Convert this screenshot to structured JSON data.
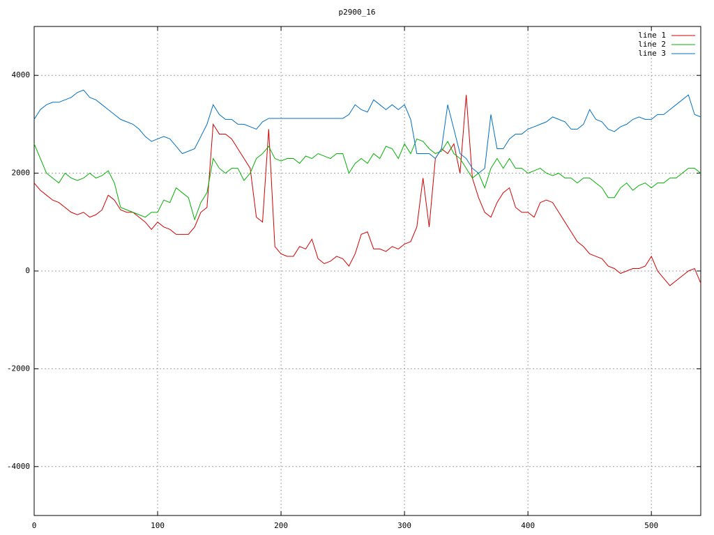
{
  "chart_data": {
    "type": "line",
    "title": "p2900_16",
    "x": [
      0,
      5,
      10,
      15,
      20,
      25,
      30,
      35,
      40,
      45,
      50,
      55,
      60,
      65,
      70,
      75,
      80,
      85,
      90,
      95,
      100,
      105,
      110,
      115,
      120,
      125,
      130,
      135,
      140,
      145,
      150,
      155,
      160,
      165,
      170,
      175,
      180,
      185,
      190,
      195,
      200,
      205,
      210,
      215,
      220,
      225,
      230,
      235,
      240,
      245,
      250,
      255,
      260,
      265,
      270,
      275,
      280,
      285,
      290,
      295,
      300,
      305,
      310,
      315,
      320,
      325,
      330,
      335,
      340,
      345,
      350,
      355,
      360,
      365,
      370,
      375,
      380,
      385,
      390,
      395,
      400,
      405,
      410,
      415,
      420,
      425,
      430,
      435,
      440,
      445,
      450,
      455,
      460,
      465,
      470,
      475,
      480,
      485,
      490,
      495,
      500,
      505,
      510,
      515,
      520,
      525,
      530,
      535,
      540
    ],
    "series": [
      {
        "name": "line 1",
        "color": "#d00000",
        "values": [
          1800,
          1650,
          1550,
          1450,
          1400,
          1300,
          1200,
          1150,
          1200,
          1100,
          1150,
          1250,
          1550,
          1450,
          1250,
          1200,
          1200,
          1100,
          1000,
          850,
          1000,
          900,
          850,
          750,
          750,
          750,
          900,
          1200,
          1300,
          3000,
          2800,
          2800,
          2700,
          2500,
          2300,
          2100,
          1100,
          1000,
          2900,
          500,
          350,
          300,
          300,
          500,
          450,
          650,
          250,
          150,
          200,
          300,
          250,
          100,
          350,
          750,
          800,
          450,
          450,
          400,
          500,
          450,
          550,
          600,
          900,
          1900,
          900,
          2300,
          2500,
          2400,
          2600,
          2000,
          3600,
          1900,
          1500,
          1200,
          1100,
          1400,
          1600,
          1700,
          1300,
          1200,
          1200,
          1100,
          1400,
          1450,
          1400,
          1200,
          1000,
          800,
          600,
          500,
          350,
          300,
          250,
          100,
          50,
          -50,
          0,
          50,
          50,
          100,
          300,
          0,
          -150,
          -300,
          -200,
          -100,
          0,
          50,
          -250
        ]
      },
      {
        "name": "line 2",
        "color": "#00b000",
        "values": [
          2600,
          2300,
          2000,
          1900,
          1800,
          2000,
          1900,
          1850,
          1900,
          2000,
          1900,
          1950,
          2050,
          1800,
          1300,
          1250,
          1200,
          1150,
          1100,
          1200,
          1200,
          1450,
          1400,
          1700,
          1600,
          1500,
          1050,
          1400,
          1600,
          2300,
          2100,
          2000,
          2100,
          2100,
          1850,
          2000,
          2300,
          2400,
          2550,
          2300,
          2250,
          2300,
          2300,
          2200,
          2350,
          2300,
          2400,
          2350,
          2300,
          2400,
          2400,
          2000,
          2200,
          2300,
          2200,
          2400,
          2300,
          2550,
          2500,
          2300,
          2600,
          2400,
          2700,
          2650,
          2500,
          2400,
          2450,
          2650,
          2400,
          2300,
          2100,
          1900,
          2000,
          1700,
          2100,
          2300,
          2100,
          2300,
          2100,
          2100,
          2000,
          2050,
          2100,
          2000,
          1950,
          2000,
          1900,
          1900,
          1800,
          1900,
          1900,
          1800,
          1700,
          1500,
          1500,
          1700,
          1800,
          1650,
          1750,
          1800,
          1700,
          1800,
          1800,
          1900,
          1900,
          2000,
          2100,
          2100,
          2000
        ]
      },
      {
        "name": "line 3",
        "color": "#0070c0",
        "values": [
          3100,
          3300,
          3400,
          3450,
          3450,
          3500,
          3550,
          3650,
          3700,
          3550,
          3500,
          3400,
          3300,
          3200,
          3100,
          3050,
          3000,
          2900,
          2750,
          2650,
          2700,
          2750,
          2700,
          2550,
          2400,
          2450,
          2500,
          2750,
          3000,
          3400,
          3200,
          3100,
          3100,
          3000,
          3000,
          2950,
          2900,
          3050,
          3120,
          3120,
          3120,
          3120,
          3120,
          3120,
          3120,
          3120,
          3120,
          3120,
          3120,
          3120,
          3120,
          3200,
          3400,
          3300,
          3250,
          3500,
          3400,
          3300,
          3400,
          3300,
          3400,
          3100,
          2400,
          2400,
          2400,
          2300,
          2500,
          3400,
          2900,
          2400,
          2300,
          2100,
          2000,
          2100,
          3200,
          2500,
          2500,
          2700,
          2800,
          2800,
          2900,
          2950,
          3000,
          3050,
          3150,
          3100,
          3050,
          2900,
          2900,
          3000,
          3300,
          3100,
          3050,
          2900,
          2850,
          2950,
          3000,
          3100,
          3150,
          3100,
          3100,
          3200,
          3200,
          3300,
          3400,
          3500,
          3600,
          3200,
          3150
        ]
      }
    ],
    "xlim": [
      0,
      540
    ],
    "ylim": [
      -5000,
      5000
    ],
    "xticks": [
      0,
      100,
      200,
      300,
      400,
      500
    ],
    "yticks": [
      -4000,
      -2000,
      0,
      2000,
      4000
    ],
    "grid": true,
    "legend": "top-right"
  }
}
